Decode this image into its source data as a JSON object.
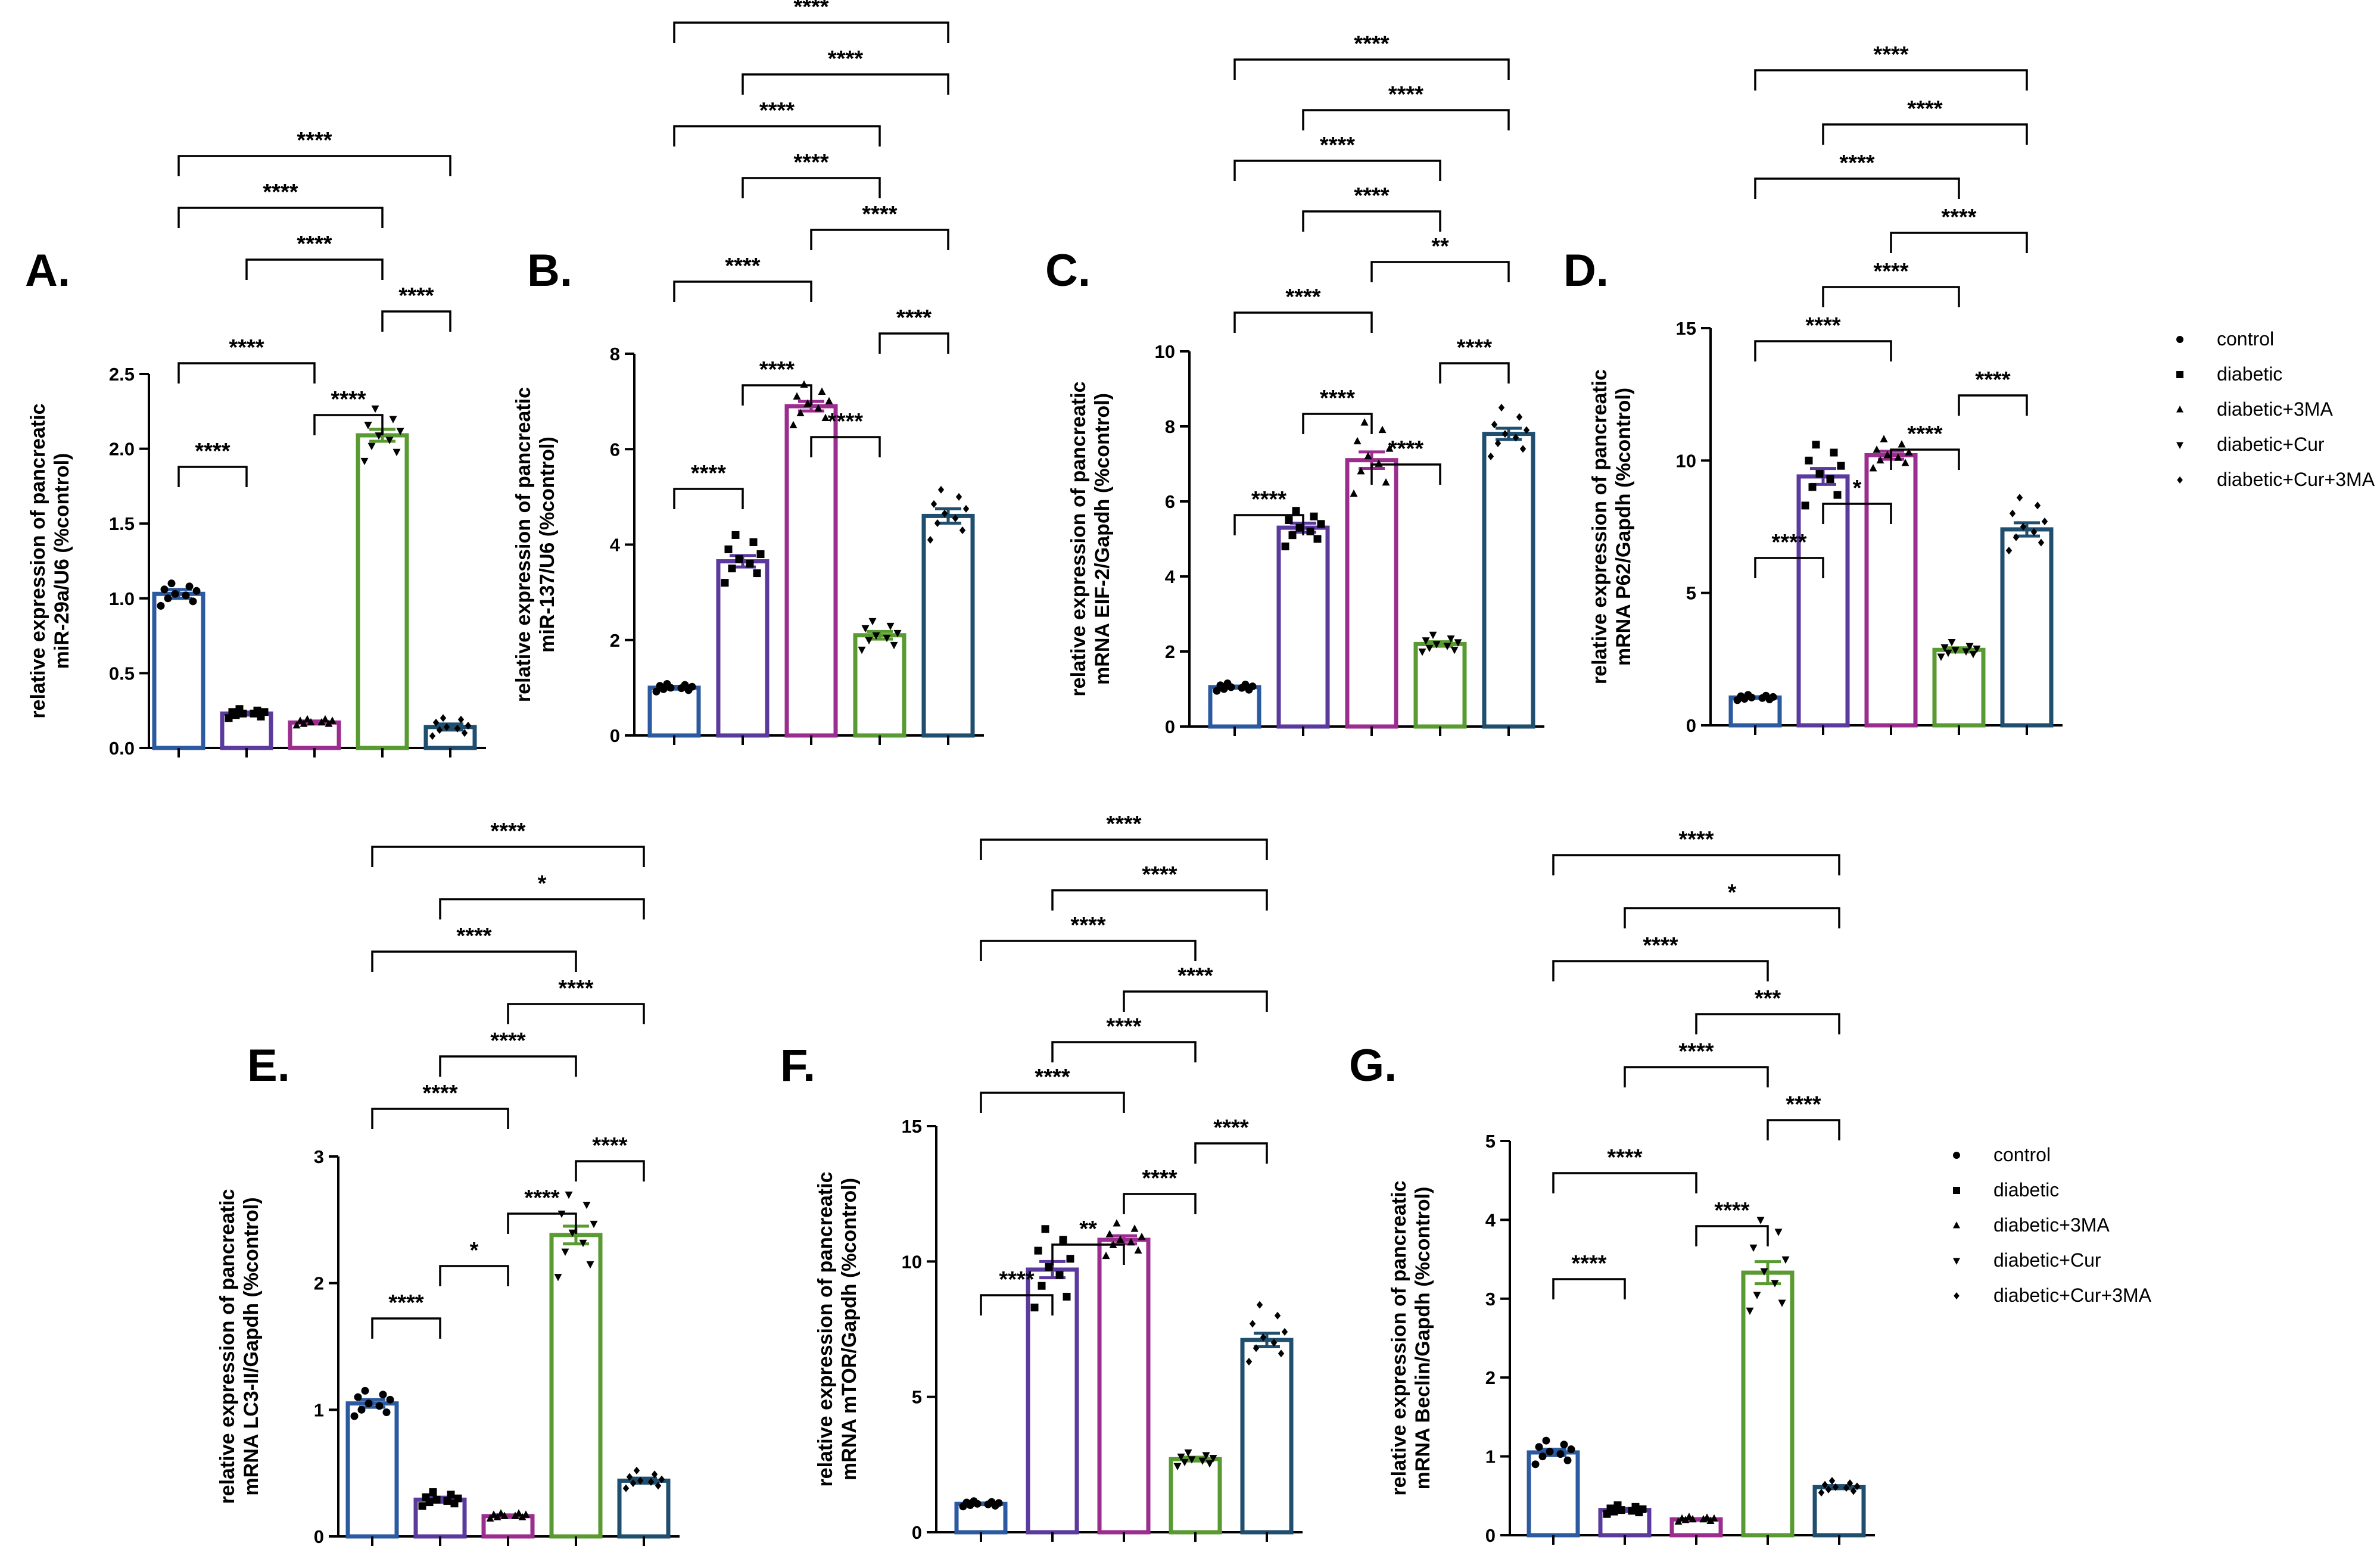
{
  "colors": {
    "control": "#2c5aa0",
    "diabetic": "#5b3a9e",
    "diabetic+3MA": "#9b2d8e",
    "diabetic+Cur": "#5a9a32",
    "diabetic+Cur+3MA": "#1f4e6e",
    "axis": "#000000"
  },
  "legends": [
    {
      "entries": [
        {
          "label": "control",
          "marker": "circle"
        },
        {
          "label": "diabetic",
          "marker": "square"
        },
        {
          "label": "diabetic+3MA",
          "marker": "triangle-up"
        },
        {
          "label": "diabetic+Cur",
          "marker": "triangle-down"
        },
        {
          "label": "diabetic+Cur+3MA",
          "marker": "diamond"
        }
      ]
    },
    {
      "entries": [
        {
          "label": "control",
          "marker": "circle"
        },
        {
          "label": "diabetic",
          "marker": "square"
        },
        {
          "label": "diabetic+3MA",
          "marker": "triangle-up"
        },
        {
          "label": "diabetic+Cur",
          "marker": "triangle-down"
        },
        {
          "label": "diabetic+Cur+3MA",
          "marker": "diamond"
        }
      ]
    }
  ],
  "chart_data": [
    {
      "type": "bar",
      "panel": "A.",
      "ylabel_line1": "relative expression of pancreatic",
      "ylabel_line2": "miR-29a/U6 (%control)",
      "ylim": [
        0,
        2.5
      ],
      "yticks": [
        0,
        0.5,
        1.0,
        1.5,
        2.0,
        2.5
      ],
      "ytick_labels": [
        "0.0",
        "0.5",
        "1.0",
        "1.5",
        "2.0",
        "2.5"
      ],
      "categories": [
        "control",
        "diabetic",
        "diabetic+3MA",
        "diabetic+Cur",
        "diabetic+Cur+3MA"
      ],
      "values": [
        1.03,
        0.23,
        0.17,
        2.09,
        0.14
      ],
      "sem": [
        0.03,
        0.01,
        0.01,
        0.04,
        0.02
      ],
      "points": [
        [
          0.95,
          0.98,
          1.0,
          1.02,
          1.03,
          1.05,
          1.06,
          1.08,
          1.1
        ],
        [
          0.2,
          0.21,
          0.22,
          0.23,
          0.23,
          0.24,
          0.24,
          0.25,
          0.26
        ],
        [
          0.15,
          0.16,
          0.16,
          0.17,
          0.17,
          0.18,
          0.18,
          0.19,
          0.19
        ],
        [
          1.92,
          1.98,
          2.02,
          2.06,
          2.09,
          2.12,
          2.16,
          2.2,
          2.27
        ],
        [
          0.08,
          0.1,
          0.12,
          0.13,
          0.14,
          0.15,
          0.17,
          0.19,
          0.2
        ]
      ],
      "comparisons": [
        {
          "from": 0,
          "to": 1,
          "label": "****"
        },
        {
          "from": 2,
          "to": 3,
          "label": "****"
        },
        {
          "from": 0,
          "to": 2,
          "label": "****"
        },
        {
          "from": 3,
          "to": 4,
          "label": "****"
        },
        {
          "from": 1,
          "to": 3,
          "label": "****"
        },
        {
          "from": 0,
          "to": 3,
          "label": "****"
        },
        {
          "from": 0,
          "to": 4,
          "label": "****"
        }
      ]
    },
    {
      "type": "bar",
      "panel": "B.",
      "ylabel_line1": "relative expression of pancreatic",
      "ylabel_line2": "miR-137/U6 (%control)",
      "ylim": [
        0,
        8
      ],
      "yticks": [
        0,
        2,
        4,
        6,
        8
      ],
      "ytick_labels": [
        "0",
        "2",
        "4",
        "6",
        "8"
      ],
      "categories": [
        "control",
        "diabetic",
        "diabetic+3MA",
        "diabetic+Cur",
        "diabetic+Cur+3MA"
      ],
      "values": [
        1.0,
        3.65,
        6.9,
        2.1,
        4.6
      ],
      "sem": [
        0.03,
        0.12,
        0.1,
        0.08,
        0.15
      ],
      "points": [
        [
          0.92,
          0.95,
          0.97,
          0.99,
          1.0,
          1.02,
          1.04,
          1.06,
          1.08
        ],
        [
          3.2,
          3.4,
          3.5,
          3.6,
          3.7,
          3.8,
          3.9,
          4.05,
          4.2
        ],
        [
          6.5,
          6.65,
          6.75,
          6.85,
          6.95,
          7.0,
          7.1,
          7.2,
          7.35
        ],
        [
          1.8,
          1.9,
          2.0,
          2.05,
          2.1,
          2.15,
          2.25,
          2.3,
          2.4
        ],
        [
          4.1,
          4.3,
          4.45,
          4.55,
          4.65,
          4.75,
          4.85,
          5.0,
          5.15
        ]
      ],
      "comparisons": [
        {
          "from": 0,
          "to": 1,
          "label": "****"
        },
        {
          "from": 2,
          "to": 3,
          "label": "****"
        },
        {
          "from": 1,
          "to": 2,
          "label": "****"
        },
        {
          "from": 3,
          "to": 4,
          "label": "****"
        },
        {
          "from": 0,
          "to": 2,
          "label": "****"
        },
        {
          "from": 2,
          "to": 4,
          "label": "****"
        },
        {
          "from": 1,
          "to": 3,
          "label": "****"
        },
        {
          "from": 0,
          "to": 3,
          "label": "****"
        },
        {
          "from": 1,
          "to": 4,
          "label": "****"
        },
        {
          "from": 0,
          "to": 4,
          "label": "****"
        }
      ]
    },
    {
      "type": "bar",
      "panel": "C.",
      "ylabel_line1": "relative expression of pancreatic",
      "ylabel_line2": "mRNA EIF-2/Gapdh (%control)",
      "ylim": [
        0,
        10
      ],
      "yticks": [
        0,
        2,
        4,
        6,
        8,
        10
      ],
      "ytick_labels": [
        "0",
        "2",
        "4",
        "6",
        "8",
        "10"
      ],
      "categories": [
        "control",
        "diabetic",
        "diabetic+3MA",
        "diabetic+Cur",
        "diabetic+Cur+3MA"
      ],
      "values": [
        1.05,
        5.3,
        7.1,
        2.2,
        7.8
      ],
      "sem": [
        0.03,
        0.12,
        0.22,
        0.06,
        0.15
      ],
      "points": [
        [
          0.95,
          0.98,
          1.0,
          1.03,
          1.05,
          1.07,
          1.1,
          1.12,
          1.15
        ],
        [
          4.8,
          5.0,
          5.1,
          5.2,
          5.3,
          5.4,
          5.5,
          5.6,
          5.75
        ],
        [
          6.2,
          6.5,
          6.8,
          7.0,
          7.2,
          7.4,
          7.6,
          7.9,
          8.1
        ],
        [
          2.0,
          2.05,
          2.1,
          2.15,
          2.2,
          2.25,
          2.3,
          2.35,
          2.45
        ],
        [
          7.2,
          7.4,
          7.55,
          7.7,
          7.8,
          7.9,
          8.05,
          8.25,
          8.5
        ]
      ],
      "comparisons": [
        {
          "from": 0,
          "to": 1,
          "label": "****"
        },
        {
          "from": 2,
          "to": 3,
          "label": "****"
        },
        {
          "from": 1,
          "to": 2,
          "label": "****"
        },
        {
          "from": 3,
          "to": 4,
          "label": "****"
        },
        {
          "from": 0,
          "to": 2,
          "label": "****"
        },
        {
          "from": 2,
          "to": 4,
          "label": "**"
        },
        {
          "from": 1,
          "to": 3,
          "label": "****"
        },
        {
          "from": 0,
          "to": 3,
          "label": "****"
        },
        {
          "from": 1,
          "to": 4,
          "label": "****"
        },
        {
          "from": 0,
          "to": 4,
          "label": "****"
        }
      ]
    },
    {
      "type": "bar",
      "panel": "D.",
      "ylabel_line1": "relative expression of pancreatic",
      "ylabel_line2": "mRNA P62/Gapdh (%control)",
      "ylim": [
        0,
        15
      ],
      "yticks": [
        0,
        5,
        10,
        15
      ],
      "ytick_labels": [
        "0",
        "5",
        "10",
        "15"
      ],
      "categories": [
        "control",
        "diabetic",
        "diabetic+3MA",
        "diabetic+Cur",
        "diabetic+Cur+3MA"
      ],
      "values": [
        1.05,
        9.4,
        10.2,
        2.85,
        7.4
      ],
      "sem": [
        0.03,
        0.3,
        0.15,
        0.08,
        0.25
      ],
      "points": [
        [
          0.95,
          0.98,
          1.0,
          1.03,
          1.05,
          1.07,
          1.1,
          1.12,
          1.15
        ],
        [
          8.3,
          8.7,
          9.0,
          9.3,
          9.5,
          9.8,
          10.0,
          10.3,
          10.6
        ],
        [
          9.7,
          9.9,
          10.0,
          10.1,
          10.2,
          10.3,
          10.4,
          10.6,
          10.8
        ],
        [
          2.6,
          2.7,
          2.75,
          2.8,
          2.85,
          2.9,
          2.95,
          3.0,
          3.15
        ],
        [
          6.6,
          6.9,
          7.1,
          7.3,
          7.5,
          7.7,
          8.0,
          8.3,
          8.6
        ]
      ],
      "comparisons": [
        {
          "from": 0,
          "to": 1,
          "label": "****"
        },
        {
          "from": 1,
          "to": 2,
          "label": "*"
        },
        {
          "from": 2,
          "to": 3,
          "label": "****"
        },
        {
          "from": 3,
          "to": 4,
          "label": "****"
        },
        {
          "from": 0,
          "to": 2,
          "label": "****"
        },
        {
          "from": 1,
          "to": 3,
          "label": "****"
        },
        {
          "from": 2,
          "to": 4,
          "label": "****"
        },
        {
          "from": 0,
          "to": 3,
          "label": "****"
        },
        {
          "from": 1,
          "to": 4,
          "label": "****"
        },
        {
          "from": 0,
          "to": 4,
          "label": "****"
        }
      ]
    },
    {
      "type": "bar",
      "panel": "E.",
      "ylabel_line1": "relative expression of pancreatic",
      "ylabel_line2": "mRNA LC3-II/Gapdh (%control)",
      "ylim": [
        0,
        3
      ],
      "yticks": [
        0,
        1,
        2,
        3
      ],
      "ytick_labels": [
        "0",
        "1",
        "2",
        "3"
      ],
      "categories": [
        "control",
        "diabetic",
        "diabetic+3MA",
        "diabetic+Cur",
        "diabetic+Cur+3MA"
      ],
      "values": [
        1.05,
        0.29,
        0.16,
        2.38,
        0.44
      ],
      "sem": [
        0.03,
        0.02,
        0.01,
        0.07,
        0.02
      ],
      "points": [
        [
          0.95,
          0.98,
          1.0,
          1.03,
          1.05,
          1.08,
          1.1,
          1.12,
          1.15
        ],
        [
          0.24,
          0.26,
          0.27,
          0.28,
          0.29,
          0.3,
          0.31,
          0.33,
          0.35
        ],
        [
          0.14,
          0.15,
          0.15,
          0.16,
          0.16,
          0.17,
          0.17,
          0.18,
          0.18
        ],
        [
          2.05,
          2.15,
          2.25,
          2.32,
          2.4,
          2.47,
          2.55,
          2.62,
          2.7
        ],
        [
          0.38,
          0.4,
          0.42,
          0.43,
          0.44,
          0.45,
          0.47,
          0.49,
          0.52
        ]
      ],
      "comparisons": [
        {
          "from": 0,
          "to": 1,
          "label": "****"
        },
        {
          "from": 1,
          "to": 2,
          "label": "*"
        },
        {
          "from": 2,
          "to": 3,
          "label": "****"
        },
        {
          "from": 3,
          "to": 4,
          "label": "****"
        },
        {
          "from": 0,
          "to": 2,
          "label": "****"
        },
        {
          "from": 1,
          "to": 3,
          "label": "****"
        },
        {
          "from": 2,
          "to": 4,
          "label": "****"
        },
        {
          "from": 0,
          "to": 3,
          "label": "****"
        },
        {
          "from": 1,
          "to": 4,
          "label": "*"
        },
        {
          "from": 0,
          "to": 4,
          "label": "****"
        }
      ]
    },
    {
      "type": "bar",
      "panel": "F.",
      "ylabel_line1": "relative expression of pancreatic",
      "ylabel_line2": "mRNA mTOR/Gapdh (%control)",
      "ylim": [
        0,
        15
      ],
      "yticks": [
        0,
        5,
        10,
        15
      ],
      "ytick_labels": [
        "0",
        "5",
        "10",
        "15"
      ],
      "categories": [
        "control",
        "diabetic",
        "diabetic+3MA",
        "diabetic+Cur",
        "diabetic+Cur+3MA"
      ],
      "values": [
        1.05,
        9.7,
        10.8,
        2.7,
        7.1
      ],
      "sem": [
        0.03,
        0.3,
        0.15,
        0.07,
        0.25
      ],
      "points": [
        [
          0.95,
          0.98,
          1.0,
          1.03,
          1.05,
          1.08,
          1.1,
          1.12,
          1.15
        ],
        [
          8.3,
          8.7,
          9.1,
          9.5,
          9.8,
          10.1,
          10.4,
          10.8,
          11.2
        ],
        [
          10.2,
          10.4,
          10.6,
          10.7,
          10.8,
          10.9,
          11.0,
          11.2,
          11.4
        ],
        [
          2.45,
          2.55,
          2.6,
          2.65,
          2.7,
          2.75,
          2.8,
          2.85,
          2.95
        ],
        [
          6.3,
          6.6,
          6.8,
          7.0,
          7.2,
          7.4,
          7.7,
          8.0,
          8.4
        ]
      ],
      "comparisons": [
        {
          "from": 0,
          "to": 1,
          "label": "****"
        },
        {
          "from": 1,
          "to": 2,
          "label": "**"
        },
        {
          "from": 2,
          "to": 3,
          "label": "****"
        },
        {
          "from": 3,
          "to": 4,
          "label": "****"
        },
        {
          "from": 0,
          "to": 2,
          "label": "****"
        },
        {
          "from": 1,
          "to": 3,
          "label": "****"
        },
        {
          "from": 2,
          "to": 4,
          "label": "****"
        },
        {
          "from": 0,
          "to": 3,
          "label": "****"
        },
        {
          "from": 1,
          "to": 4,
          "label": "****"
        },
        {
          "from": 0,
          "to": 4,
          "label": "****"
        }
      ]
    },
    {
      "type": "bar",
      "panel": "G.",
      "ylabel_line1": "relative expression of pancreatic",
      "ylabel_line2": "mRNA Beclin/Gapdh (%control)",
      "ylim": [
        0,
        5
      ],
      "yticks": [
        0,
        1,
        2,
        3,
        4,
        5
      ],
      "ytick_labels": [
        "0",
        "1",
        "2",
        "3",
        "4",
        "5"
      ],
      "categories": [
        "control",
        "diabetic",
        "diabetic+3MA",
        "diabetic+Cur",
        "diabetic+Cur+3MA"
      ],
      "values": [
        1.05,
        0.32,
        0.2,
        3.33,
        0.61
      ],
      "sem": [
        0.04,
        0.02,
        0.01,
        0.14,
        0.02
      ],
      "points": [
        [
          0.9,
          0.95,
          1.0,
          1.03,
          1.06,
          1.09,
          1.12,
          1.15,
          1.2
        ],
        [
          0.27,
          0.29,
          0.3,
          0.31,
          0.32,
          0.33,
          0.34,
          0.36,
          0.38
        ],
        [
          0.17,
          0.18,
          0.19,
          0.2,
          0.2,
          0.21,
          0.21,
          0.22,
          0.23
        ],
        [
          2.85,
          2.95,
          3.05,
          3.2,
          3.35,
          3.5,
          3.65,
          3.85,
          4.0
        ],
        [
          0.54,
          0.56,
          0.58,
          0.6,
          0.61,
          0.62,
          0.64,
          0.66,
          0.69
        ]
      ],
      "comparisons": [
        {
          "from": 0,
          "to": 1,
          "label": "****"
        },
        {
          "from": 2,
          "to": 3,
          "label": "****"
        },
        {
          "from": 0,
          "to": 2,
          "label": "****"
        },
        {
          "from": 3,
          "to": 4,
          "label": "****"
        },
        {
          "from": 1,
          "to": 3,
          "label": "****"
        },
        {
          "from": 2,
          "to": 4,
          "label": "***"
        },
        {
          "from": 0,
          "to": 3,
          "label": "****"
        },
        {
          "from": 1,
          "to": 4,
          "label": "*"
        },
        {
          "from": 0,
          "to": 4,
          "label": "****"
        }
      ]
    }
  ]
}
